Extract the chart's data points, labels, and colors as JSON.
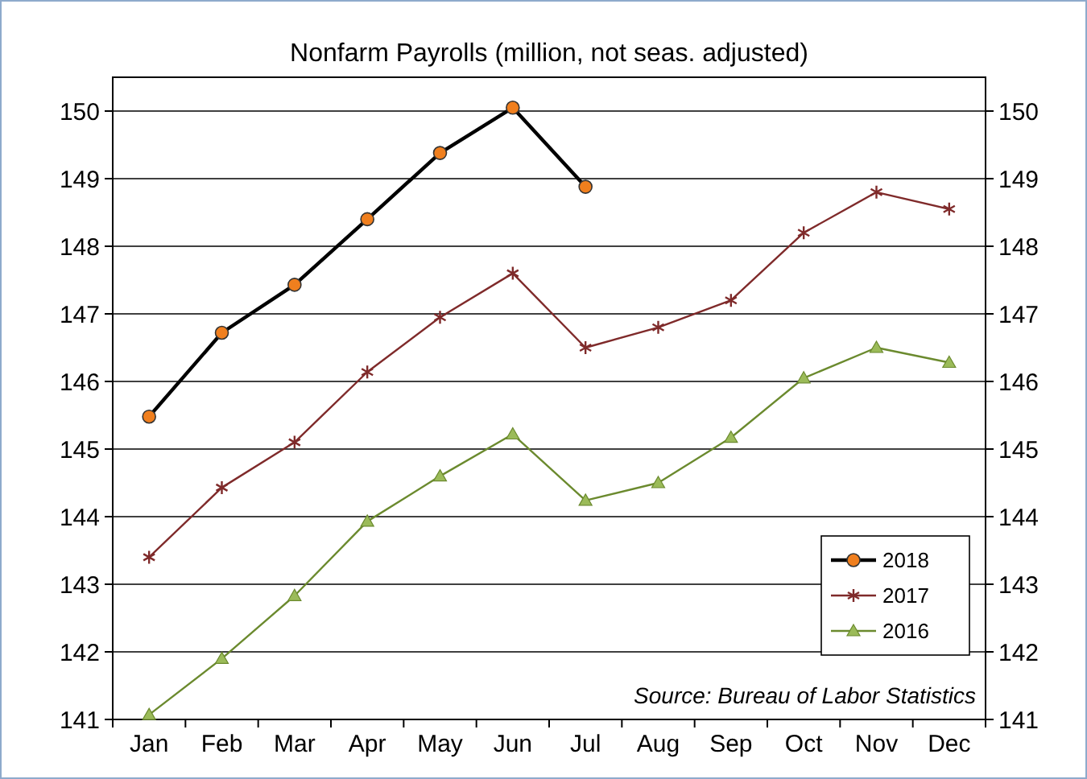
{
  "chart_data": {
    "type": "line",
    "title": "Nonfarm Payrolls (million, not seas. adjusted)",
    "categories": [
      "Jan",
      "Feb",
      "Mar",
      "Apr",
      "May",
      "Jun",
      "Jul",
      "Aug",
      "Sep",
      "Oct",
      "Nov",
      "Dec"
    ],
    "series": [
      {
        "name": "2018",
        "color": "#000000",
        "marker": "circle",
        "values": [
          145.48,
          146.72,
          147.43,
          148.4,
          149.38,
          150.05,
          148.88,
          null,
          null,
          null,
          null,
          null
        ]
      },
      {
        "name": "2017",
        "color": "#7f2a2a",
        "marker": "cross",
        "values": [
          143.4,
          144.43,
          145.1,
          146.14,
          146.95,
          147.6,
          146.5,
          146.8,
          147.2,
          148.2,
          148.8,
          148.55
        ]
      },
      {
        "name": "2016",
        "color": "#6b8a2e",
        "marker": "triangle",
        "values": [
          141.07,
          141.9,
          142.83,
          143.93,
          144.6,
          145.22,
          144.24,
          144.5,
          145.17,
          146.05,
          146.5,
          146.28
        ]
      }
    ],
    "ylim": [
      141,
      150.5
    ],
    "yticks": [
      141,
      142,
      143,
      144,
      145,
      146,
      147,
      148,
      149,
      150
    ],
    "y2lim": [
      141,
      150.5
    ],
    "y2ticks": [
      141,
      142,
      143,
      144,
      145,
      146,
      147,
      148,
      149,
      150
    ],
    "grid": "y",
    "legend": "bottom right",
    "annotations": [
      "Source: Bureau of Labor Statistics"
    ]
  }
}
